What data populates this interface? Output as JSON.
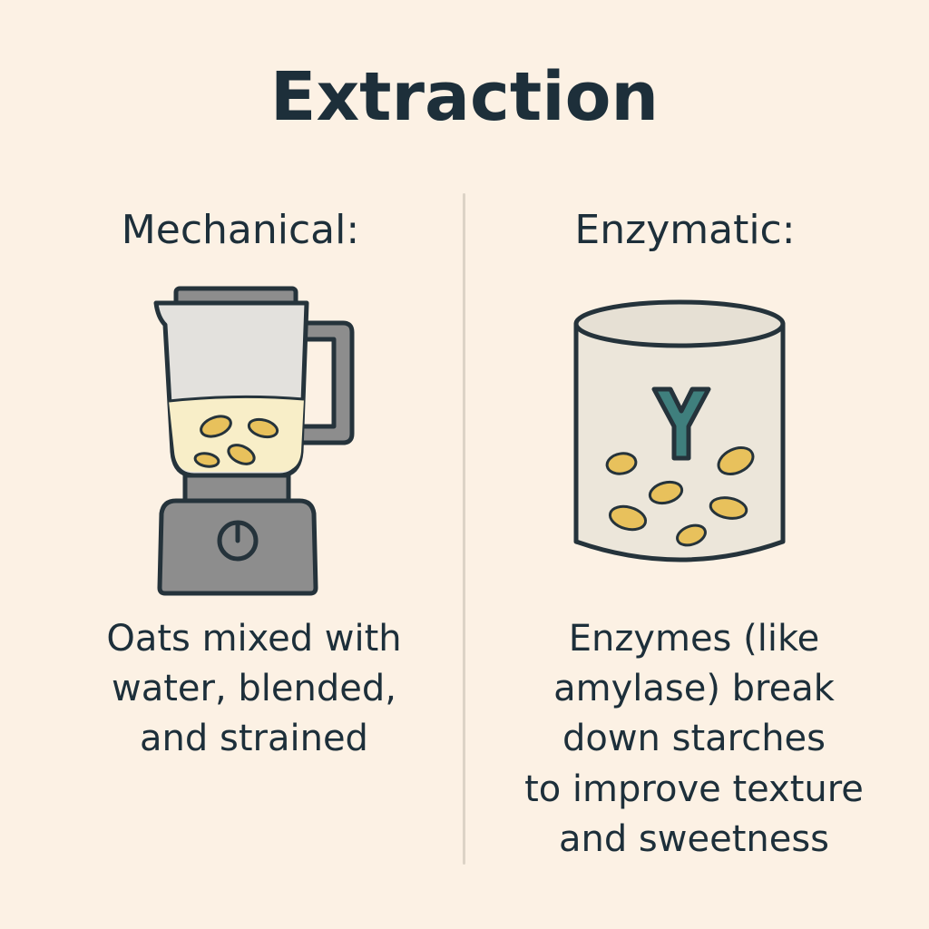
{
  "title": "Extraction",
  "mechanical": {
    "heading": "Mechanical:",
    "description": "Oats mixed with\nwater, blended,\nand strained",
    "icon": "blender-icon"
  },
  "enzymatic": {
    "heading": "Enzymatic:",
    "description": "Enzymes (like\namylase) break\ndown starches\nto improve texture\nand sweetness",
    "icon": "enzyme-container-icon"
  },
  "colors": {
    "background": "#fcf1e4",
    "text": "#1d2f3a",
    "outline": "#25333b",
    "blender_body": "#8d8d8d",
    "liquid": "#f8eec8",
    "oat": "#e8c15c",
    "enzyme": "#3f7f7d",
    "container": "#ece6da"
  }
}
